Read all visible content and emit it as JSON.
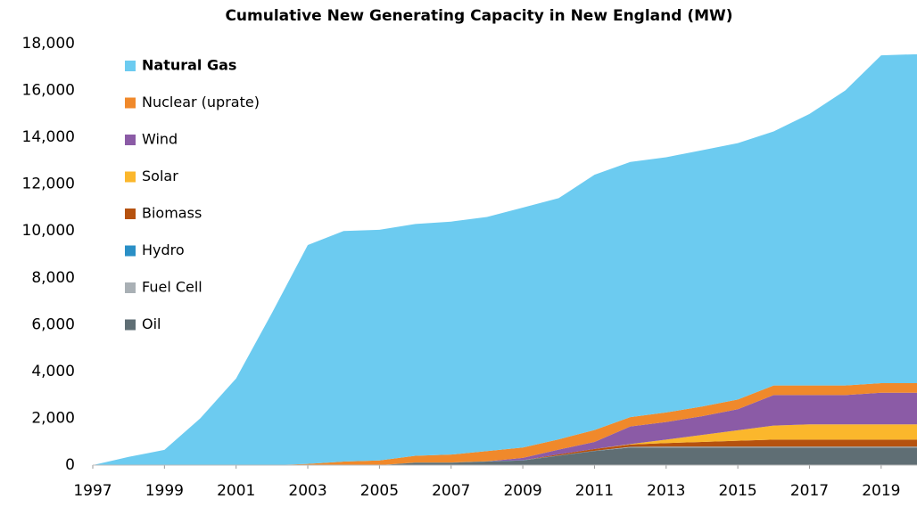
{
  "chart_data": {
    "type": "stacked_area",
    "title": "Cumulative New Generating Capacity in New England (MW)",
    "x": [
      1997,
      1998,
      1999,
      2000,
      2001,
      2002,
      2003,
      2004,
      2005,
      2006,
      2007,
      2008,
      2009,
      2010,
      2011,
      2012,
      2013,
      2014,
      2015,
      2016,
      2017,
      2018,
      2019,
      2020
    ],
    "xlim": [
      1997,
      2020
    ],
    "xticks": [
      1997,
      1999,
      2001,
      2003,
      2005,
      2007,
      2009,
      2011,
      2013,
      2015,
      2017,
      2019
    ],
    "ylim": [
      0,
      18000
    ],
    "yticks": [
      0,
      {
        "value": 2000,
        "label": "2,000"
      },
      {
        "value": 4000,
        "label": "4,000"
      },
      {
        "value": 6000,
        "label": "6,000"
      },
      {
        "value": 8000,
        "label": "8,000"
      },
      {
        "value": 10000,
        "label": "10,000"
      },
      {
        "value": 12000,
        "label": "12,000"
      },
      {
        "value": 14000,
        "label": "14,000"
      },
      {
        "value": 16000,
        "label": "16,000"
      },
      {
        "value": 18000,
        "label": "18,000"
      }
    ],
    "legend": "upper left",
    "series": [
      {
        "name": "Oil",
        "color": "#5f6e74",
        "values": [
          0,
          0,
          0,
          0,
          0,
          0,
          0,
          0,
          0,
          100,
          100,
          150,
          200,
          400,
          600,
          750,
          750,
          750,
          750,
          750,
          750,
          750,
          750,
          750
        ]
      },
      {
        "name": "Fuel Cell",
        "color": "#a9b0b5",
        "values": [
          0,
          0,
          0,
          0,
          0,
          0,
          0,
          0,
          0,
          0,
          0,
          0,
          0,
          0,
          0,
          20,
          30,
          30,
          30,
          30,
          30,
          30,
          30,
          30
        ]
      },
      {
        "name": "Hydro",
        "color": "#2a8fc6",
        "values": [
          0,
          0,
          0,
          0,
          0,
          0,
          0,
          0,
          0,
          10,
          10,
          10,
          10,
          10,
          10,
          10,
          10,
          10,
          10,
          10,
          10,
          10,
          10,
          10
        ]
      },
      {
        "name": "Biomass",
        "color": "#b5520f",
        "values": [
          0,
          0,
          0,
          0,
          0,
          0,
          0,
          0,
          0,
          0,
          0,
          0,
          0,
          50,
          80,
          100,
          150,
          200,
          250,
          300,
          300,
          300,
          300,
          300
        ]
      },
      {
        "name": "Solar",
        "color": "#fbb72c",
        "values": [
          0,
          0,
          0,
          0,
          0,
          0,
          0,
          0,
          0,
          0,
          0,
          0,
          0,
          0,
          0,
          20,
          150,
          300,
          450,
          600,
          650,
          650,
          650,
          650
        ]
      },
      {
        "name": "Wind",
        "color": "#8b5ba6",
        "values": [
          0,
          0,
          0,
          0,
          0,
          0,
          0,
          0,
          0,
          0,
          0,
          0,
          100,
          200,
          300,
          750,
          750,
          800,
          900,
          1300,
          1250,
          1250,
          1350,
          1350
        ]
      },
      {
        "name": "Nuclear (uprate)",
        "color": "#f0892b",
        "values": [
          0,
          0,
          0,
          0,
          0,
          0,
          50,
          150,
          200,
          290,
          340,
          440,
          440,
          440,
          510,
          400,
          410,
          410,
          410,
          410,
          410,
          410,
          410,
          410
        ]
      },
      {
        "name": "Natural Gas",
        "color": "#6ccbf0",
        "values": [
          0,
          350,
          650,
          2000,
          3700,
          6500,
          9350,
          9850,
          9850,
          9900,
          9950,
          10000,
          10250,
          10300,
          10900,
          10900,
          10900,
          10950,
          10950,
          10850,
          11600,
          12600,
          14000,
          14050
        ]
      }
    ]
  }
}
